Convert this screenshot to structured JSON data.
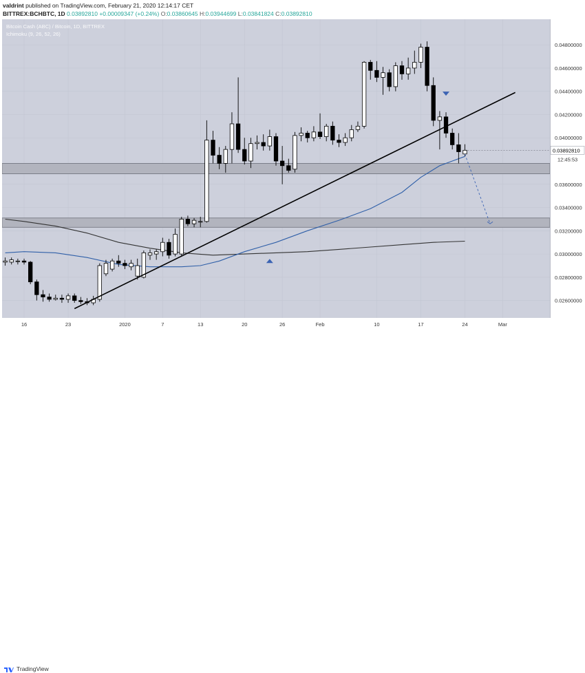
{
  "header": {
    "author": "valdrint",
    "published_text": "published on TradingView.com, February 21, 2020 12:14:17 CET",
    "symbol": "BITTREX:BCHBTC, 1D",
    "last": "0.03892810",
    "change": "+0.00009347 (+0.24%)",
    "open_label": "O:",
    "open_value": "0.03860645",
    "high_label": "H:",
    "high_value": "0.03944699",
    "low_label": "L:",
    "low_value": "0.03841824",
    "close_label": "C:",
    "close_value": "0.03892810"
  },
  "legend": {
    "title": "Bitcoin Cash (ABC) / Bitcoin, 1D, BITTREX",
    "indicator": "Ichimoku (9, 26, 52, 26)"
  },
  "price_tag": "0.03892810",
  "countdown": "12:45:53",
  "footer": {
    "brand": "TradingView"
  },
  "colors": {
    "background": "#cdd0dc",
    "candle_up": "#ffffff",
    "candle_down": "#000000",
    "ma_blue": "#2f5fa8",
    "ma_dark": "#333333",
    "zone": "#b2b4be",
    "trendline": "#000000",
    "arrow_blue": "#3b63b3"
  },
  "chart_data": {
    "type": "candlestick",
    "title": "Bitcoin Cash (ABC) / Bitcoin, 1D, BITTREX",
    "y_ticks": [
      "0.04800000",
      "0.04600000",
      "0.04400000",
      "0.04200000",
      "0.04000000",
      "0.03600000",
      "0.03400000",
      "0.03200000",
      "0.03000000",
      "0.02800000",
      "0.02600000"
    ],
    "y_tick_values": [
      0.048,
      0.046,
      0.044,
      0.042,
      0.04,
      0.036,
      0.034,
      0.032,
      0.03,
      0.028,
      0.026
    ],
    "ylim": [
      0.0245,
      0.0502
    ],
    "x_ticks": [
      {
        "label": "16",
        "day": 0
      },
      {
        "label": "23",
        "day": 7
      },
      {
        "label": "2020",
        "day": 16
      },
      {
        "label": "7",
        "day": 22
      },
      {
        "label": "13",
        "day": 28
      },
      {
        "label": "20",
        "day": 35
      },
      {
        "label": "26",
        "day": 41
      },
      {
        "label": "Feb",
        "day": 47
      },
      {
        "label": "10",
        "day": 56
      },
      {
        "label": "17",
        "day": 63
      },
      {
        "label": "24",
        "day": 70
      },
      {
        "label": "Mar",
        "day": 76
      }
    ],
    "xlim": [
      -3.5,
      83.5
    ],
    "candles": [
      {
        "day": -3,
        "o": 0.0293,
        "h": 0.0297,
        "l": 0.029,
        "c": 0.0294
      },
      {
        "day": -2,
        "o": 0.0293,
        "h": 0.0297,
        "l": 0.0291,
        "c": 0.0295
      },
      {
        "day": -1,
        "o": 0.0294,
        "h": 0.0296,
        "l": 0.0291,
        "c": 0.0294
      },
      {
        "day": 0,
        "o": 0.0294,
        "h": 0.0296,
        "l": 0.0291,
        "c": 0.0293
      },
      {
        "day": 1,
        "o": 0.0293,
        "h": 0.0294,
        "l": 0.0274,
        "c": 0.0276
      },
      {
        "day": 2,
        "o": 0.0276,
        "h": 0.0278,
        "l": 0.026,
        "c": 0.0265
      },
      {
        "day": 3,
        "o": 0.0265,
        "h": 0.0269,
        "l": 0.0259,
        "c": 0.0263
      },
      {
        "day": 4,
        "o": 0.0263,
        "h": 0.0266,
        "l": 0.0259,
        "c": 0.0261
      },
      {
        "day": 5,
        "o": 0.0261,
        "h": 0.0265,
        "l": 0.026,
        "c": 0.0262
      },
      {
        "day": 6,
        "o": 0.0262,
        "h": 0.0265,
        "l": 0.0258,
        "c": 0.0261
      },
      {
        "day": 7,
        "o": 0.0261,
        "h": 0.0266,
        "l": 0.0258,
        "c": 0.0264
      },
      {
        "day": 8,
        "o": 0.0264,
        "h": 0.0266,
        "l": 0.0258,
        "c": 0.026
      },
      {
        "day": 9,
        "o": 0.026,
        "h": 0.0263,
        "l": 0.0257,
        "c": 0.0259
      },
      {
        "day": 10,
        "o": 0.0259,
        "h": 0.0262,
        "l": 0.0256,
        "c": 0.0258
      },
      {
        "day": 11,
        "o": 0.0258,
        "h": 0.0264,
        "l": 0.0256,
        "c": 0.0261
      },
      {
        "day": 12,
        "o": 0.0261,
        "h": 0.0292,
        "l": 0.0259,
        "c": 0.029
      },
      {
        "day": 13,
        "o": 0.0283,
        "h": 0.0295,
        "l": 0.0281,
        "c": 0.0292
      },
      {
        "day": 14,
        "o": 0.0287,
        "h": 0.0296,
        "l": 0.0285,
        "c": 0.0294
      },
      {
        "day": 15,
        "o": 0.0294,
        "h": 0.0299,
        "l": 0.0289,
        "c": 0.0292
      },
      {
        "day": 16,
        "o": 0.0292,
        "h": 0.0295,
        "l": 0.0287,
        "c": 0.029
      },
      {
        "day": 17,
        "o": 0.0289,
        "h": 0.0295,
        "l": 0.0286,
        "c": 0.0292
      },
      {
        "day": 18,
        "o": 0.0281,
        "h": 0.0296,
        "l": 0.0278,
        "c": 0.029
      },
      {
        "day": 19,
        "o": 0.028,
        "h": 0.0303,
        "l": 0.0279,
        "c": 0.0301
      },
      {
        "day": 20,
        "o": 0.0299,
        "h": 0.0304,
        "l": 0.0295,
        "c": 0.0301
      },
      {
        "day": 21,
        "o": 0.03,
        "h": 0.0304,
        "l": 0.0295,
        "c": 0.0302
      },
      {
        "day": 22,
        "o": 0.0302,
        "h": 0.0314,
        "l": 0.0298,
        "c": 0.031
      },
      {
        "day": 23,
        "o": 0.031,
        "h": 0.0313,
        "l": 0.0296,
        "c": 0.0299
      },
      {
        "day": 24,
        "o": 0.03,
        "h": 0.0322,
        "l": 0.0298,
        "c": 0.0317
      },
      {
        "day": 25,
        "o": 0.03,
        "h": 0.0332,
        "l": 0.0298,
        "c": 0.033
      },
      {
        "day": 26,
        "o": 0.033,
        "h": 0.0333,
        "l": 0.0324,
        "c": 0.0326
      },
      {
        "day": 27,
        "o": 0.0326,
        "h": 0.0331,
        "l": 0.0323,
        "c": 0.0329
      },
      {
        "day": 28,
        "o": 0.0328,
        "h": 0.0332,
        "l": 0.0323,
        "c": 0.0328
      },
      {
        "day": 29,
        "o": 0.0328,
        "h": 0.0415,
        "l": 0.0327,
        "c": 0.0398
      },
      {
        "day": 30,
        "o": 0.0398,
        "h": 0.0406,
        "l": 0.0378,
        "c": 0.0385
      },
      {
        "day": 31,
        "o": 0.0385,
        "h": 0.0392,
        "l": 0.0373,
        "c": 0.0378
      },
      {
        "day": 32,
        "o": 0.0378,
        "h": 0.0393,
        "l": 0.037,
        "c": 0.039
      },
      {
        "day": 33,
        "o": 0.039,
        "h": 0.0422,
        "l": 0.0378,
        "c": 0.0412
      },
      {
        "day": 34,
        "o": 0.0412,
        "h": 0.0452,
        "l": 0.0387,
        "c": 0.039
      },
      {
        "day": 35,
        "o": 0.039,
        "h": 0.04,
        "l": 0.0377,
        "c": 0.038
      },
      {
        "day": 36,
        "o": 0.038,
        "h": 0.04,
        "l": 0.0374,
        "c": 0.0395
      },
      {
        "day": 37,
        "o": 0.0395,
        "h": 0.0402,
        "l": 0.039,
        "c": 0.0396
      },
      {
        "day": 38,
        "o": 0.0396,
        "h": 0.0403,
        "l": 0.0389,
        "c": 0.0393
      },
      {
        "day": 39,
        "o": 0.0393,
        "h": 0.0407,
        "l": 0.0389,
        "c": 0.0401
      },
      {
        "day": 40,
        "o": 0.0401,
        "h": 0.0404,
        "l": 0.0376,
        "c": 0.038
      },
      {
        "day": 41,
        "o": 0.038,
        "h": 0.0393,
        "l": 0.036,
        "c": 0.0376
      },
      {
        "day": 42,
        "o": 0.0376,
        "h": 0.0382,
        "l": 0.037,
        "c": 0.0372
      },
      {
        "day": 43,
        "o": 0.0373,
        "h": 0.0405,
        "l": 0.037,
        "c": 0.0402
      },
      {
        "day": 44,
        "o": 0.0402,
        "h": 0.0409,
        "l": 0.0397,
        "c": 0.0404
      },
      {
        "day": 45,
        "o": 0.0404,
        "h": 0.0406,
        "l": 0.0396,
        "c": 0.04
      },
      {
        "day": 46,
        "o": 0.04,
        "h": 0.041,
        "l": 0.0397,
        "c": 0.0405
      },
      {
        "day": 47,
        "o": 0.0405,
        "h": 0.0421,
        "l": 0.0399,
        "c": 0.0401
      },
      {
        "day": 48,
        "o": 0.0401,
        "h": 0.0412,
        "l": 0.0397,
        "c": 0.041
      },
      {
        "day": 49,
        "o": 0.041,
        "h": 0.0414,
        "l": 0.0394,
        "c": 0.0398
      },
      {
        "day": 50,
        "o": 0.0398,
        "h": 0.0403,
        "l": 0.0392,
        "c": 0.0396
      },
      {
        "day": 51,
        "o": 0.0396,
        "h": 0.0404,
        "l": 0.0393,
        "c": 0.04
      },
      {
        "day": 52,
        "o": 0.04,
        "h": 0.0411,
        "l": 0.0397,
        "c": 0.0407
      },
      {
        "day": 53,
        "o": 0.0407,
        "h": 0.0414,
        "l": 0.0405,
        "c": 0.041
      },
      {
        "day": 54,
        "o": 0.041,
        "h": 0.0466,
        "l": 0.0408,
        "c": 0.0465
      },
      {
        "day": 55,
        "o": 0.0465,
        "h": 0.0467,
        "l": 0.045,
        "c": 0.0458
      },
      {
        "day": 56,
        "o": 0.0458,
        "h": 0.0466,
        "l": 0.0448,
        "c": 0.0452
      },
      {
        "day": 57,
        "o": 0.0452,
        "h": 0.0461,
        "l": 0.0437,
        "c": 0.0456
      },
      {
        "day": 58,
        "o": 0.0456,
        "h": 0.0459,
        "l": 0.044,
        "c": 0.0444
      },
      {
        "day": 59,
        "o": 0.0444,
        "h": 0.0465,
        "l": 0.044,
        "c": 0.0462
      },
      {
        "day": 60,
        "o": 0.0462,
        "h": 0.0466,
        "l": 0.045,
        "c": 0.0455
      },
      {
        "day": 61,
        "o": 0.0455,
        "h": 0.0469,
        "l": 0.045,
        "c": 0.046
      },
      {
        "day": 62,
        "o": 0.046,
        "h": 0.0475,
        "l": 0.0455,
        "c": 0.0465
      },
      {
        "day": 63,
        "o": 0.0465,
        "h": 0.0481,
        "l": 0.046,
        "c": 0.0478
      },
      {
        "day": 64,
        "o": 0.0478,
        "h": 0.0483,
        "l": 0.044,
        "c": 0.0445
      },
      {
        "day": 65,
        "o": 0.0445,
        "h": 0.0452,
        "l": 0.041,
        "c": 0.0415
      },
      {
        "day": 66,
        "o": 0.0415,
        "h": 0.0423,
        "l": 0.039,
        "c": 0.0418
      },
      {
        "day": 67,
        "o": 0.0418,
        "h": 0.0422,
        "l": 0.04,
        "c": 0.0404
      },
      {
        "day": 68,
        "o": 0.0404,
        "h": 0.0408,
        "l": 0.039,
        "c": 0.0394
      },
      {
        "day": 69,
        "o": 0.0394,
        "h": 0.0404,
        "l": 0.0378,
        "c": 0.0388
      },
      {
        "day": 70,
        "o": 0.03860645,
        "h": 0.03944699,
        "l": 0.03841824,
        "c": 0.0389281
      }
    ],
    "ma_blue": [
      {
        "day": -3,
        "v": 0.0301
      },
      {
        "day": 0,
        "v": 0.0302
      },
      {
        "day": 5,
        "v": 0.0301
      },
      {
        "day": 10,
        "v": 0.0297
      },
      {
        "day": 15,
        "v": 0.0291
      },
      {
        "day": 20,
        "v": 0.0289
      },
      {
        "day": 25,
        "v": 0.0289
      },
      {
        "day": 28,
        "v": 0.029
      },
      {
        "day": 31,
        "v": 0.0294
      },
      {
        "day": 35,
        "v": 0.0302
      },
      {
        "day": 40,
        "v": 0.031
      },
      {
        "day": 45,
        "v": 0.032
      },
      {
        "day": 50,
        "v": 0.0329
      },
      {
        "day": 55,
        "v": 0.0339
      },
      {
        "day": 60,
        "v": 0.0353
      },
      {
        "day": 63,
        "v": 0.0366
      },
      {
        "day": 66,
        "v": 0.0376
      },
      {
        "day": 68,
        "v": 0.038
      },
      {
        "day": 70,
        "v": 0.0384
      }
    ],
    "ma_dark": [
      {
        "day": -3,
        "v": 0.033
      },
      {
        "day": 0,
        "v": 0.0328
      },
      {
        "day": 5,
        "v": 0.0324
      },
      {
        "day": 10,
        "v": 0.0318
      },
      {
        "day": 15,
        "v": 0.031
      },
      {
        "day": 20,
        "v": 0.0305
      },
      {
        "day": 25,
        "v": 0.0301
      },
      {
        "day": 30,
        "v": 0.0299
      },
      {
        "day": 35,
        "v": 0.03
      },
      {
        "day": 40,
        "v": 0.0301
      },
      {
        "day": 45,
        "v": 0.0302
      },
      {
        "day": 50,
        "v": 0.0304
      },
      {
        "day": 55,
        "v": 0.0306
      },
      {
        "day": 60,
        "v": 0.0308
      },
      {
        "day": 65,
        "v": 0.031
      },
      {
        "day": 70,
        "v": 0.0311
      }
    ],
    "zones": [
      {
        "low": 0.0369,
        "high": 0.0378
      },
      {
        "low": 0.0323,
        "high": 0.0331
      }
    ],
    "trendline": {
      "day1": 8,
      "v1": 0.0253,
      "day2": 78,
      "v2": 0.0439
    },
    "projection": {
      "day1": 70,
      "v1": 0.0386,
      "day2": 74,
      "v2": 0.0326
    },
    "markers": [
      {
        "kind": "down",
        "day": 67,
        "v": 0.0438
      },
      {
        "kind": "up",
        "day": 39,
        "v": 0.0294
      }
    ]
  }
}
